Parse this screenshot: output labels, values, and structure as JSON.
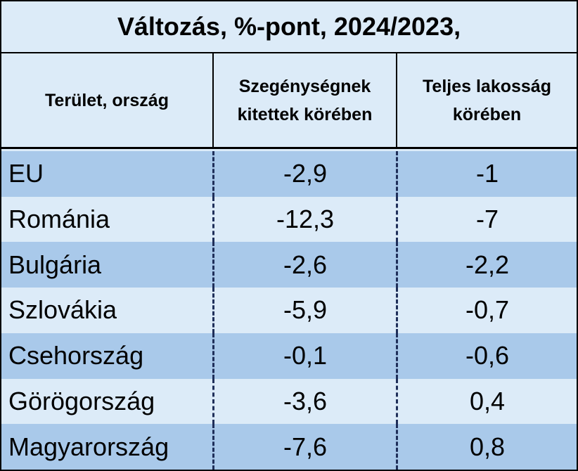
{
  "table": {
    "title": "Változás, %-pont, 2024/2023,",
    "header": [
      "Terület, ország",
      "Szegénységnek kitettek körében",
      "Teljes lakosság körében"
    ],
    "rows": [
      [
        "EU",
        "-2,9",
        "-1"
      ],
      [
        "Románia",
        "-12,3",
        "-7"
      ],
      [
        "Bulgária",
        "-2,6",
        "-2,2"
      ],
      [
        "Szlovákia",
        "-5,9",
        "-0,7"
      ],
      [
        "Csehország",
        "-0,1",
        "-0,6"
      ],
      [
        "Görögország",
        "-3,6",
        "0,4"
      ],
      [
        "Magyarország",
        "-7,6",
        "0,8"
      ]
    ]
  }
}
